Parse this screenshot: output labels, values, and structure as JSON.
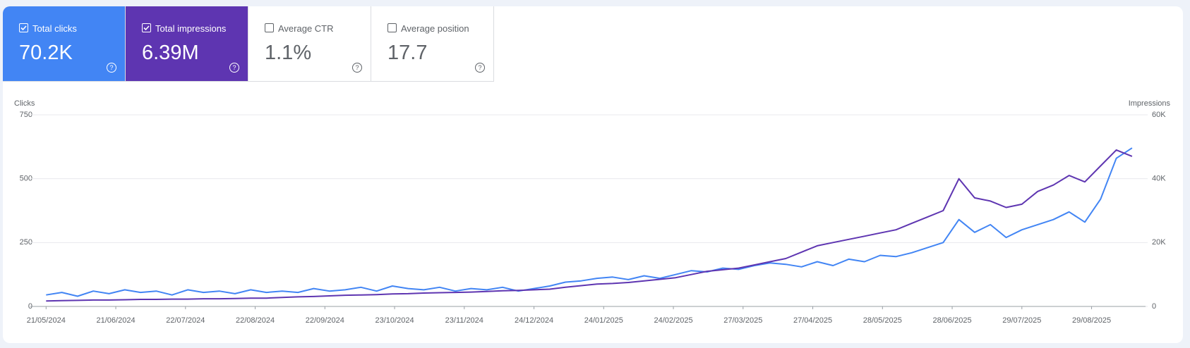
{
  "metrics": [
    {
      "label": "Total clicks",
      "value": "70.2K",
      "selected": true,
      "color": "#4285f4"
    },
    {
      "label": "Total impressions",
      "value": "6.39M",
      "selected": true,
      "color": "#5e35b1"
    },
    {
      "label": "Average CTR",
      "value": "1.1%",
      "selected": false,
      "color": "#ffffff"
    },
    {
      "label": "Average position",
      "value": "17.7",
      "selected": false,
      "color": "#ffffff"
    }
  ],
  "chart_data": {
    "type": "line",
    "y_label": "Clicks",
    "y2_label": "Impressions",
    "xlim": [
      "14/05/2024",
      "22/09/2025"
    ],
    "xticks": [
      "21/05/2024",
      "21/06/2024",
      "22/07/2024",
      "22/08/2024",
      "22/09/2024",
      "23/10/2024",
      "23/11/2024",
      "24/12/2024",
      "24/01/2025",
      "24/02/2025",
      "27/03/2025",
      "27/04/2025",
      "28/05/2025",
      "28/06/2025",
      "29/07/2025",
      "29/08/2025"
    ],
    "ylim": [
      0,
      750
    ],
    "yticks": [
      0,
      250,
      500,
      750
    ],
    "y2lim": [
      0,
      60000
    ],
    "y2ticks": [
      0,
      {
        "value": 20000,
        "label": "20K"
      },
      {
        "value": 40000,
        "label": "40K"
      },
      {
        "value": 60000,
        "label": "60K"
      }
    ],
    "grid": true,
    "x": [
      "21/05/2024",
      "28/05/2024",
      "04/06/2024",
      "11/06/2024",
      "18/06/2024",
      "25/06/2024",
      "02/07/2024",
      "09/07/2024",
      "16/07/2024",
      "23/07/2024",
      "30/07/2024",
      "06/08/2024",
      "13/08/2024",
      "20/08/2024",
      "27/08/2024",
      "03/09/2024",
      "10/09/2024",
      "17/09/2024",
      "24/09/2024",
      "01/10/2024",
      "08/10/2024",
      "15/10/2024",
      "22/10/2024",
      "29/10/2024",
      "05/11/2024",
      "12/11/2024",
      "19/11/2024",
      "26/11/2024",
      "03/12/2024",
      "10/12/2024",
      "17/12/2024",
      "24/12/2024",
      "31/12/2024",
      "07/01/2025",
      "14/01/2025",
      "21/01/2025",
      "28/01/2025",
      "04/02/2025",
      "11/02/2025",
      "18/02/2025",
      "25/02/2025",
      "04/03/2025",
      "11/03/2025",
      "18/03/2025",
      "25/03/2025",
      "01/04/2025",
      "08/04/2025",
      "15/04/2025",
      "22/04/2025",
      "29/04/2025",
      "06/05/2025",
      "13/05/2025",
      "20/05/2025",
      "27/05/2025",
      "03/06/2025",
      "10/06/2025",
      "17/06/2025",
      "24/06/2025",
      "01/07/2025",
      "08/07/2025",
      "15/07/2025",
      "22/07/2025",
      "29/07/2025",
      "05/08/2025",
      "12/08/2025",
      "19/08/2025",
      "26/08/2025",
      "02/09/2025",
      "09/09/2025",
      "16/09/2025"
    ],
    "series": [
      {
        "name": "Total clicks",
        "color": "#4285f4",
        "values": [
          45,
          55,
          40,
          60,
          50,
          65,
          55,
          60,
          45,
          65,
          55,
          60,
          50,
          65,
          55,
          60,
          55,
          70,
          60,
          65,
          75,
          60,
          80,
          70,
          65,
          75,
          60,
          70,
          65,
          75,
          60,
          70,
          80,
          95,
          100,
          110,
          115,
          105,
          120,
          110,
          125,
          140,
          135,
          150,
          145,
          160,
          170,
          165,
          155,
          175,
          160,
          185,
          175,
          200,
          195,
          210,
          230,
          250,
          340,
          290,
          320,
          270,
          300,
          320,
          340,
          370,
          330,
          420,
          580,
          620
        ]
      },
      {
        "name": "Total impressions",
        "color": "#5e35b1",
        "axis": "y2",
        "values": [
          1700,
          1800,
          1900,
          2000,
          2000,
          2100,
          2200,
          2200,
          2300,
          2300,
          2400,
          2400,
          2500,
          2600,
          2600,
          2800,
          3000,
          3100,
          3300,
          3500,
          3600,
          3700,
          3900,
          4000,
          4200,
          4300,
          4400,
          4500,
          4700,
          4900,
          5000,
          5200,
          5400,
          6000,
          6500,
          7000,
          7200,
          7500,
          8000,
          8500,
          9000,
          10000,
          11000,
          11500,
          12000,
          13000,
          14000,
          15000,
          17000,
          19000,
          20000,
          21000,
          22000,
          23000,
          24000,
          26000,
          28000,
          30000,
          40000,
          34000,
          33000,
          31000,
          32000,
          36000,
          38000,
          41000,
          39000,
          44000,
          49000,
          47000
        ]
      }
    ]
  }
}
